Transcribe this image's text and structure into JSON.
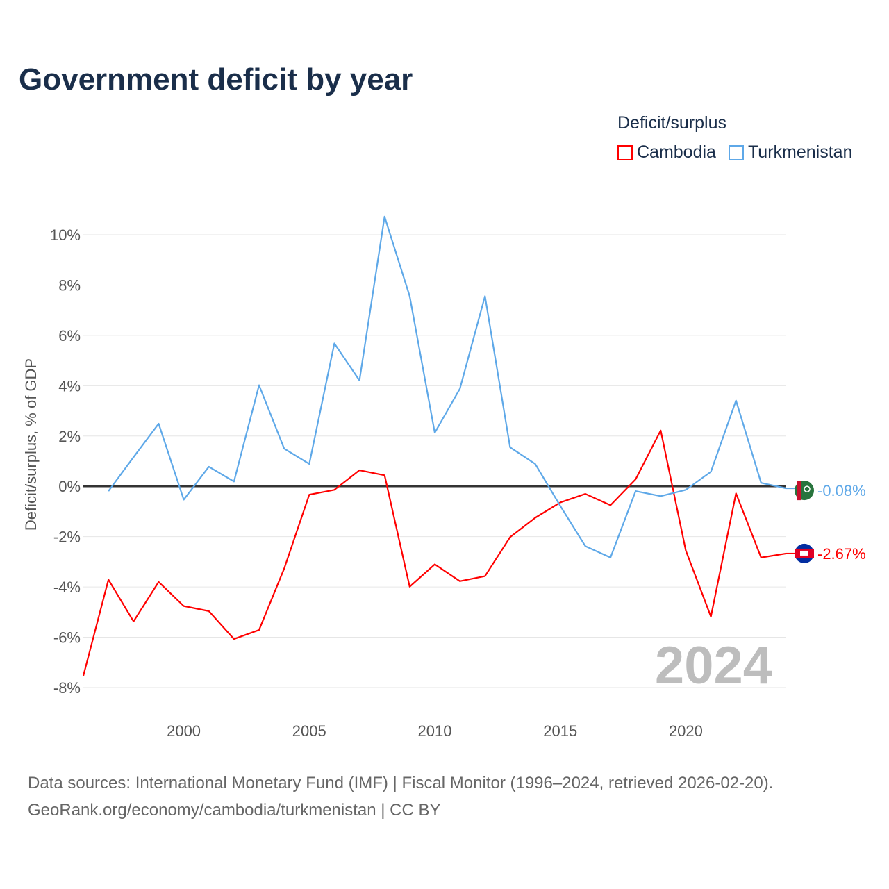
{
  "chart_data": {
    "type": "line",
    "title": "Government deficit by year",
    "xlabel": "",
    "ylabel": "Deficit/surplus, % of GDP",
    "xlim": [
      1996,
      2024
    ],
    "ylim": [
      -8,
      10
    ],
    "x_ticks": [
      2000,
      2005,
      2010,
      2015,
      2020
    ],
    "y_ticks": [
      10,
      8,
      6,
      4,
      2,
      0,
      -2,
      -4,
      -6,
      -8
    ],
    "y_tick_labels": [
      "10%",
      "8%",
      "6%",
      "4%",
      "2%",
      "0%",
      "-2%",
      "-4%",
      "-6%",
      "-8%"
    ],
    "legend_title": "Deficit/surplus",
    "legend_placement": "top-right",
    "year_label": "2024",
    "series": [
      {
        "name": "Cambodia",
        "color": "#ff0000",
        "end_label": "-2.67%",
        "x": [
          1996,
          1997,
          1998,
          1999,
          2000,
          2001,
          2002,
          2003,
          2004,
          2005,
          2006,
          2007,
          2008,
          2009,
          2010,
          2011,
          2012,
          2013,
          2014,
          2015,
          2016,
          2017,
          2018,
          2019,
          2020,
          2021,
          2022,
          2023,
          2024
        ],
        "values": [
          -7.53,
          -3.71,
          -5.37,
          -3.8,
          -4.76,
          -4.96,
          -6.07,
          -5.71,
          -3.27,
          -0.33,
          -0.14,
          0.64,
          0.44,
          -3.99,
          -3.1,
          -3.77,
          -3.57,
          -2.02,
          -1.25,
          -0.64,
          -0.3,
          -0.75,
          0.28,
          2.22,
          -2.55,
          -5.18,
          -0.28,
          -2.83,
          -2.67
        ]
      },
      {
        "name": "Turkmenistan",
        "color": "#5ea8e8",
        "end_label": "-0.08%",
        "x": [
          1997,
          1998,
          1999,
          2000,
          2001,
          2002,
          2003,
          2004,
          2005,
          2006,
          2007,
          2008,
          2009,
          2010,
          2011,
          2012,
          2013,
          2014,
          2015,
          2016,
          2017,
          2018,
          2019,
          2020,
          2021,
          2022,
          2023,
          2024
        ],
        "values": [
          -0.19,
          1.16,
          2.49,
          -0.53,
          0.78,
          0.19,
          4.02,
          1.5,
          0.89,
          5.68,
          4.21,
          10.72,
          7.56,
          2.13,
          3.88,
          7.56,
          1.55,
          0.89,
          -0.78,
          -2.38,
          -2.83,
          -0.19,
          -0.39,
          -0.14,
          0.58,
          3.41,
          0.14,
          -0.08
        ]
      }
    ]
  },
  "source": {
    "line1": "Data sources: International Monetary Fund (IMF) | Fiscal Monitor (1996–2024, retrieved 2026-02-20).",
    "line2": "GeoRank.org/economy/cambodia/turkmenistan | CC BY"
  }
}
